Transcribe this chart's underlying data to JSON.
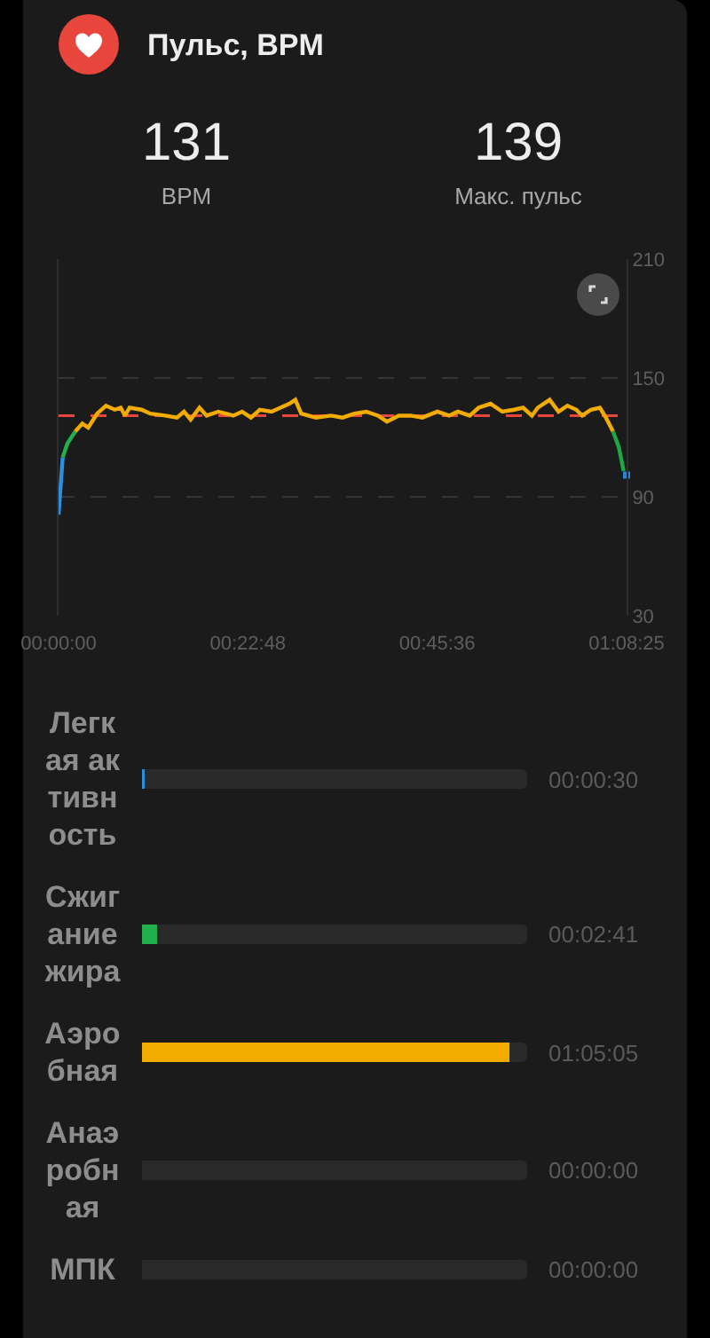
{
  "chart_data": [
    {
      "type": "line",
      "title": "Пульс, BPM",
      "annotations": [
        "131",
        "BPM",
        "139",
        "Макс. пульс"
      ],
      "series": [
        {
          "color": "#2d8fe0",
          "x": [
            0,
            0.0083
          ],
          "values": [
            81,
            110
          ]
        },
        {
          "color": "#21b04b",
          "x": [
            0.0083,
            0.0178,
            0.0335
          ],
          "values": [
            110,
            117,
            123
          ]
        },
        {
          "color": "#f2ac00",
          "x": [
            0.0335,
            0.0477,
            0.0595,
            0.0773,
            0.0951,
            0.1129,
            0.1247,
            0.1333,
            0.1425,
            0.1664,
            0.1842,
            0.2138,
            0.2377,
            0.2519,
            0.2651,
            0.2829,
            0.2972,
            0.3207,
            0.3506,
            0.3684,
            0.3862,
            0.404,
            0.4276,
            0.4454,
            0.4632,
            0.4753,
            0.4871,
            0.5166,
            0.5466,
            0.5701,
            0.594,
            0.6178,
            0.6413,
            0.6592,
            0.683,
            0.7069,
            0.7304,
            0.7603,
            0.7839,
            0.8017,
            0.8255,
            0.8434,
            0.8672,
            0.8908,
            0.9146,
            0.9324,
            0.9503,
            0.962,
            0.9859,
            1.0037,
            1.0215,
            1.0393,
            1.0511,
            1.0689,
            1.0867,
            1.0988,
            1.1131
          ],
          "values": [
            123,
            127,
            125,
            132,
            136,
            134,
            135,
            131,
            135,
            134,
            132,
            131,
            130,
            133,
            129,
            135,
            131,
            133,
            131,
            133,
            130,
            134,
            133,
            135,
            137,
            139,
            132,
            130,
            131,
            130,
            132,
            133,
            131,
            128,
            131,
            131,
            130,
            133,
            131,
            133,
            131,
            135,
            137,
            133,
            134,
            135,
            131,
            135,
            139,
            133,
            136,
            134,
            131,
            134,
            135,
            130,
            123
          ]
        },
        {
          "color": "#1ca845",
          "x": [
            1.1131,
            1.1248,
            1.1345
          ],
          "values": [
            123,
            115,
            103
          ]
        },
        {
          "type": "scatter",
          "marker": "square",
          "color": "#2784d8",
          "x": [
            1.1403
          ],
          "values": [
            101
          ]
        }
      ],
      "xlim": [
        0,
        1.1403
      ],
      "xticks": [
        {
          "value": 0,
          "label": "00:00:00"
        },
        {
          "value": 0.38,
          "label": "00:22:48"
        },
        {
          "value": 0.76,
          "label": "00:45:36"
        },
        {
          "value": 1.1403,
          "label": "01:08:25"
        }
      ],
      "ylim": [
        30,
        210
      ],
      "yticks": [
        30,
        90,
        150,
        210
      ],
      "grid": "y",
      "ref_lines": [
        {
          "axis": "y",
          "value": 131,
          "color": "#e8453c",
          "line_style": "dashed"
        }
      ]
    },
    {
      "type": "bar",
      "orientation": "horizontal",
      "stacked": true,
      "categories": [
        "Легкая активность",
        "Сжигание жира",
        "Аэробная",
        "Анаэробная",
        "МПК"
      ],
      "series": [
        {
          "values": [
            0.0083,
            0.0447,
            1.0847,
            0,
            0
          ],
          "colors": [
            "#2d8fe0",
            "#21b04b",
            "#f2ac00",
            null,
            null
          ],
          "value_labels": [
            "00:00:30",
            "00:02:41",
            "01:05:05",
            "00:00:00",
            "00:00:00"
          ]
        },
        {
          "color": "#2a2a2a",
          "values": [
            1.1295,
            1.0931,
            0.0531,
            1.1378,
            1.1378
          ]
        }
      ],
      "xlim": [
        0,
        1.1378
      ],
      "tick_labels": "y"
    }
  ]
}
